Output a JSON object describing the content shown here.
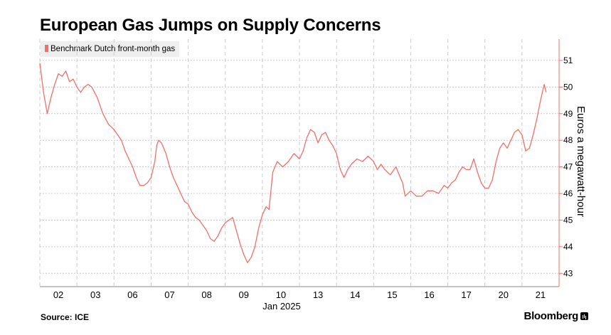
{
  "chart_data": {
    "type": "line",
    "title": "European Gas Jumps on Supply Concerns",
    "ylabel": "Euros a megawatt-hour",
    "xlabel_secondary": "Jan 2025",
    "source": "Source: ICE",
    "brand": "Bloomberg",
    "ylim": [
      42.5,
      51.8
    ],
    "yticks": [
      43,
      44,
      45,
      46,
      47,
      48,
      49,
      50,
      51
    ],
    "categories": [
      "02",
      "03",
      "06",
      "07",
      "08",
      "09",
      "10",
      "13",
      "14",
      "15",
      "16",
      "17",
      "20",
      "21"
    ],
    "grid": true,
    "legend_placement": "top-left",
    "colors": {
      "series": "#f07069",
      "axis": "#f07069",
      "grid": "#cccccc"
    },
    "series": [
      {
        "name": "Benchmark Dutch front-month gas",
        "points": [
          [
            0.0,
            50.9
          ],
          [
            0.1,
            49.8
          ],
          [
            0.2,
            49.0
          ],
          [
            0.3,
            49.6
          ],
          [
            0.4,
            50.1
          ],
          [
            0.5,
            50.5
          ],
          [
            0.6,
            50.4
          ],
          [
            0.7,
            50.6
          ],
          [
            0.8,
            50.2
          ],
          [
            0.9,
            50.3
          ],
          [
            1.0,
            50.0
          ],
          [
            1.1,
            49.8
          ],
          [
            1.2,
            50.0
          ],
          [
            1.3,
            50.1
          ],
          [
            1.4,
            50.0
          ],
          [
            1.55,
            49.6
          ],
          [
            1.7,
            49.0
          ],
          [
            1.85,
            48.6
          ],
          [
            2.0,
            48.4
          ],
          [
            2.1,
            48.2
          ],
          [
            2.2,
            48.0
          ],
          [
            2.3,
            47.6
          ],
          [
            2.4,
            47.3
          ],
          [
            2.5,
            47.0
          ],
          [
            2.6,
            46.6
          ],
          [
            2.7,
            46.3
          ],
          [
            2.8,
            46.3
          ],
          [
            2.9,
            46.4
          ],
          [
            3.0,
            46.6
          ],
          [
            3.1,
            47.2
          ],
          [
            3.15,
            47.8
          ],
          [
            3.2,
            48.0
          ],
          [
            3.28,
            47.9
          ],
          [
            3.4,
            47.5
          ],
          [
            3.5,
            47.0
          ],
          [
            3.6,
            46.6
          ],
          [
            3.7,
            46.3
          ],
          [
            3.8,
            46.0
          ],
          [
            3.9,
            45.7
          ],
          [
            4.0,
            45.6
          ],
          [
            4.1,
            45.3
          ],
          [
            4.2,
            45.1
          ],
          [
            4.3,
            45.0
          ],
          [
            4.4,
            44.8
          ],
          [
            4.5,
            44.6
          ],
          [
            4.6,
            44.3
          ],
          [
            4.7,
            44.2
          ],
          [
            4.8,
            44.4
          ],
          [
            4.9,
            44.7
          ],
          [
            5.0,
            44.9
          ],
          [
            5.1,
            45.0
          ],
          [
            5.2,
            45.1
          ],
          [
            5.3,
            44.6
          ],
          [
            5.4,
            44.1
          ],
          [
            5.5,
            43.7
          ],
          [
            5.6,
            43.4
          ],
          [
            5.7,
            43.6
          ],
          [
            5.8,
            44.0
          ],
          [
            5.9,
            44.7
          ],
          [
            6.0,
            45.2
          ],
          [
            6.1,
            45.5
          ],
          [
            6.18,
            45.4
          ],
          [
            6.28,
            46.8
          ],
          [
            6.4,
            47.2
          ],
          [
            6.55,
            47.0
          ],
          [
            6.7,
            47.2
          ],
          [
            6.85,
            47.5
          ],
          [
            7.0,
            47.3
          ],
          [
            7.1,
            47.6
          ],
          [
            7.2,
            48.1
          ],
          [
            7.3,
            48.4
          ],
          [
            7.4,
            48.3
          ],
          [
            7.5,
            47.9
          ],
          [
            7.6,
            48.2
          ],
          [
            7.7,
            48.3
          ],
          [
            7.8,
            48.0
          ],
          [
            7.9,
            47.8
          ],
          [
            8.0,
            47.5
          ],
          [
            8.1,
            46.9
          ],
          [
            8.2,
            46.6
          ],
          [
            8.3,
            46.9
          ],
          [
            8.4,
            47.1
          ],
          [
            8.55,
            47.3
          ],
          [
            8.7,
            47.2
          ],
          [
            8.85,
            47.4
          ],
          [
            9.0,
            47.2
          ],
          [
            9.1,
            46.9
          ],
          [
            9.2,
            47.1
          ],
          [
            9.3,
            46.9
          ],
          [
            9.45,
            46.7
          ],
          [
            9.6,
            47.0
          ],
          [
            9.72,
            46.6
          ],
          [
            9.78,
            46.4
          ],
          [
            9.85,
            45.9
          ],
          [
            10.0,
            46.1
          ],
          [
            10.15,
            45.9
          ],
          [
            10.3,
            45.9
          ],
          [
            10.45,
            46.1
          ],
          [
            10.6,
            46.1
          ],
          [
            10.75,
            46.0
          ],
          [
            10.9,
            46.3
          ],
          [
            11.0,
            46.2
          ],
          [
            11.1,
            46.4
          ],
          [
            11.2,
            46.5
          ],
          [
            11.3,
            46.8
          ],
          [
            11.4,
            47.0
          ],
          [
            11.5,
            46.9
          ],
          [
            11.6,
            46.9
          ],
          [
            11.7,
            47.3
          ],
          [
            11.8,
            46.8
          ],
          [
            11.9,
            46.4
          ],
          [
            12.0,
            46.2
          ],
          [
            12.1,
            46.2
          ],
          [
            12.2,
            46.5
          ],
          [
            12.3,
            47.2
          ],
          [
            12.4,
            47.7
          ],
          [
            12.5,
            47.9
          ],
          [
            12.6,
            47.7
          ],
          [
            12.7,
            48.0
          ],
          [
            12.8,
            48.3
          ],
          [
            12.9,
            48.4
          ],
          [
            13.0,
            48.2
          ],
          [
            13.1,
            47.6
          ],
          [
            13.2,
            47.7
          ],
          [
            13.3,
            48.2
          ],
          [
            13.4,
            48.8
          ],
          [
            13.5,
            49.5
          ],
          [
            13.6,
            50.1
          ],
          [
            13.65,
            49.8
          ]
        ]
      }
    ]
  }
}
